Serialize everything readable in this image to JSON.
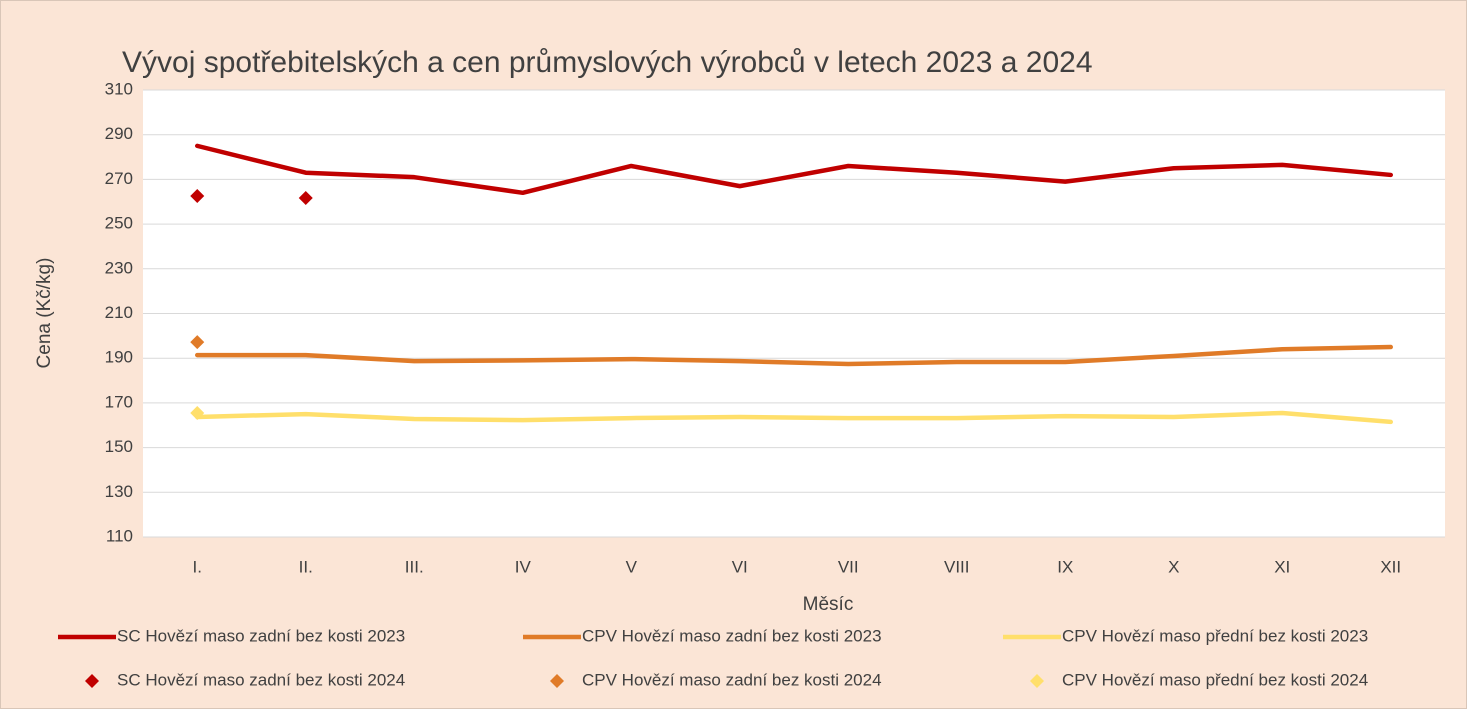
{
  "chart_data": {
    "type": "line",
    "title": "Vývoj spotřebitelských a cen průmyslových výrobců v letech 2023 a 2024",
    "x_label": "Měsíc",
    "y_label": "Cena (Kč/kg)",
    "categories": [
      "I.",
      "II.",
      "III.",
      "IV",
      "V",
      "VI",
      "VII",
      "VIII",
      "IX",
      "X",
      "XI",
      "XII"
    ],
    "ylim": [
      110,
      310
    ],
    "yticks": [
      110,
      130,
      150,
      170,
      190,
      210,
      230,
      250,
      270,
      290,
      310
    ],
    "grid": true,
    "legend": "bottom",
    "series": [
      {
        "name": "SC Hovězí  maso zadní bez kosti 2023",
        "color": "#c00000",
        "mode": "line",
        "values": [
          285,
          273,
          271,
          264,
          276,
          267,
          276,
          273,
          269,
          275,
          276.5,
          272
        ]
      },
      {
        "name": "CPV  Hovězí maso zadní bez kosti 2023",
        "color": "#e07b28",
        "mode": "line",
        "values": [
          191.4,
          191.4,
          188.7,
          189,
          189.6,
          188.7,
          187.4,
          188.3,
          188.3,
          191,
          194,
          195
        ]
      },
      {
        "name": "CPV Hovězí maso přední bez kosti 2023",
        "color": "#ffdf6b",
        "mode": "line",
        "values": [
          163.7,
          165,
          162.8,
          162.3,
          163.2,
          163.7,
          163.2,
          163.2,
          164.1,
          163.7,
          165.5,
          161.5
        ]
      },
      {
        "name": "SC Hovězí  maso zadní bez kosti 2024",
        "color": "#c00000",
        "mode": "markers",
        "values": [
          262.6,
          261.7,
          null,
          null,
          null,
          null,
          null,
          null,
          null,
          null,
          null,
          null
        ]
      },
      {
        "name": "CPV Hovězí maso zadní bez kosti 2024",
        "color": "#e07b28",
        "mode": "markers",
        "values": [
          197.2,
          null,
          null,
          null,
          null,
          null,
          null,
          null,
          null,
          null,
          null,
          null
        ]
      },
      {
        "name": "CPV Hovězí maso přední bez kosti 2024",
        "color": "#ffdf6b",
        "mode": "markers",
        "values": [
          165.5,
          null,
          null,
          null,
          null,
          null,
          null,
          null,
          null,
          null,
          null,
          null
        ]
      }
    ]
  }
}
